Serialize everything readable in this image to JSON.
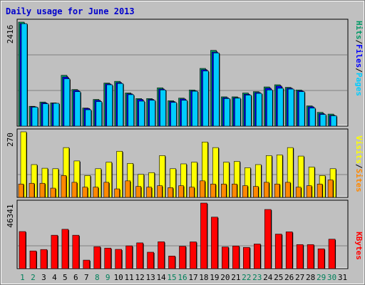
{
  "title": "Daily usage for June 2013",
  "colors": {
    "background": "#c0c0c0",
    "frame": "#808080",
    "title_text": "#0000cc",
    "pages": "#00ccff",
    "hits": "#009966",
    "files": "#0000ff",
    "visits": "#ffff00",
    "sites": "#ff8800",
    "kbytes": "#ff0000"
  },
  "chart_data": [
    {
      "type": "bar",
      "panel": "hits-files-pages",
      "categories": [
        "1",
        "2",
        "3",
        "4",
        "5",
        "6",
        "7",
        "8",
        "9",
        "10",
        "11",
        "12",
        "13",
        "14",
        "15",
        "16",
        "17",
        "18",
        "19",
        "20",
        "21",
        "22",
        "23",
        "24",
        "25",
        "26",
        "27",
        "28",
        "29",
        "30",
        "31"
      ],
      "y_max_label": "2416",
      "series": [
        {
          "name": "Hits",
          "values": [
            2416,
            460,
            560,
            540,
            1180,
            850,
            420,
            620,
            1000,
            1040,
            770,
            640,
            640,
            890,
            590,
            650,
            840,
            1340,
            1760,
            680,
            680,
            770,
            800,
            910,
            960,
            900,
            840,
            470,
            320,
            280,
            0
          ]
        },
        {
          "name": "Files",
          "values": [
            2380,
            450,
            540,
            530,
            1140,
            830,
            410,
            600,
            980,
            1010,
            750,
            620,
            620,
            860,
            570,
            630,
            820,
            1310,
            1720,
            660,
            660,
            740,
            780,
            880,
            930,
            880,
            820,
            450,
            290,
            250,
            0
          ]
        },
        {
          "name": "Pages",
          "values": [
            2380,
            440,
            520,
            530,
            1100,
            800,
            380,
            570,
            960,
            990,
            730,
            580,
            600,
            840,
            550,
            600,
            810,
            1280,
            1700,
            640,
            650,
            720,
            760,
            840,
            880,
            860,
            800,
            420,
            270,
            240,
            0
          ]
        }
      ]
    },
    {
      "type": "bar",
      "panel": "visits-sites",
      "categories": [
        "1",
        "2",
        "3",
        "4",
        "5",
        "6",
        "7",
        "8",
        "9",
        "10",
        "11",
        "12",
        "13",
        "14",
        "15",
        "16",
        "17",
        "18",
        "19",
        "20",
        "21",
        "22",
        "23",
        "24",
        "25",
        "26",
        "27",
        "28",
        "29",
        "30",
        "31"
      ],
      "y_max_label": "270",
      "series": [
        {
          "name": "Visits",
          "values": [
            270,
            135,
            120,
            118,
            205,
            150,
            90,
            118,
            145,
            190,
            140,
            95,
            102,
            172,
            118,
            138,
            145,
            228,
            205,
            145,
            148,
            122,
            135,
            172,
            175,
            205,
            170,
            125,
            90,
            118,
            0
          ]
        },
        {
          "name": "Sites",
          "values": [
            55,
            58,
            58,
            38,
            90,
            62,
            42,
            42,
            62,
            35,
            68,
            45,
            42,
            48,
            40,
            48,
            42,
            68,
            55,
            55,
            55,
            48,
            45,
            62,
            55,
            62,
            42,
            48,
            55,
            72,
            0
          ]
        }
      ]
    },
    {
      "type": "bar",
      "panel": "kbytes",
      "categories": [
        "1",
        "2",
        "3",
        "4",
        "5",
        "6",
        "7",
        "8",
        "9",
        "10",
        "11",
        "12",
        "13",
        "14",
        "15",
        "16",
        "17",
        "18",
        "19",
        "20",
        "21",
        "22",
        "23",
        "24",
        "25",
        "26",
        "27",
        "28",
        "29",
        "30",
        "31"
      ],
      "y_max_label": "46341",
      "series": [
        {
          "name": "KBytes",
          "values": [
            26200,
            12500,
            13500,
            23600,
            27800,
            23600,
            6000,
            15500,
            14500,
            13600,
            16100,
            18200,
            11600,
            19000,
            8900,
            15800,
            18900,
            46341,
            36400,
            15300,
            16000,
            15000,
            17400,
            41800,
            24400,
            26000,
            17000,
            17000,
            14000,
            20800,
            0
          ]
        }
      ]
    }
  ],
  "legend_top": [
    {
      "text": "Hits",
      "color_key": "hits"
    },
    {
      "text": "/",
      "color_key": "slash"
    },
    {
      "text": "Files",
      "color_key": "files"
    },
    {
      "text": "/",
      "color_key": "slash"
    },
    {
      "text": "Pages",
      "color_key": "pages"
    }
  ],
  "legend_mid": [
    {
      "text": "Visits",
      "color_key": "visits"
    },
    {
      "text": "/",
      "color_key": "slash"
    },
    {
      "text": "Sites",
      "color_key": "sites"
    }
  ],
  "legend_bottom": [
    {
      "text": "KBytes",
      "color_key": "kbytes"
    }
  ],
  "weekend_days": [
    1,
    2,
    8,
    9,
    15,
    16,
    22,
    23,
    29,
    30
  ]
}
